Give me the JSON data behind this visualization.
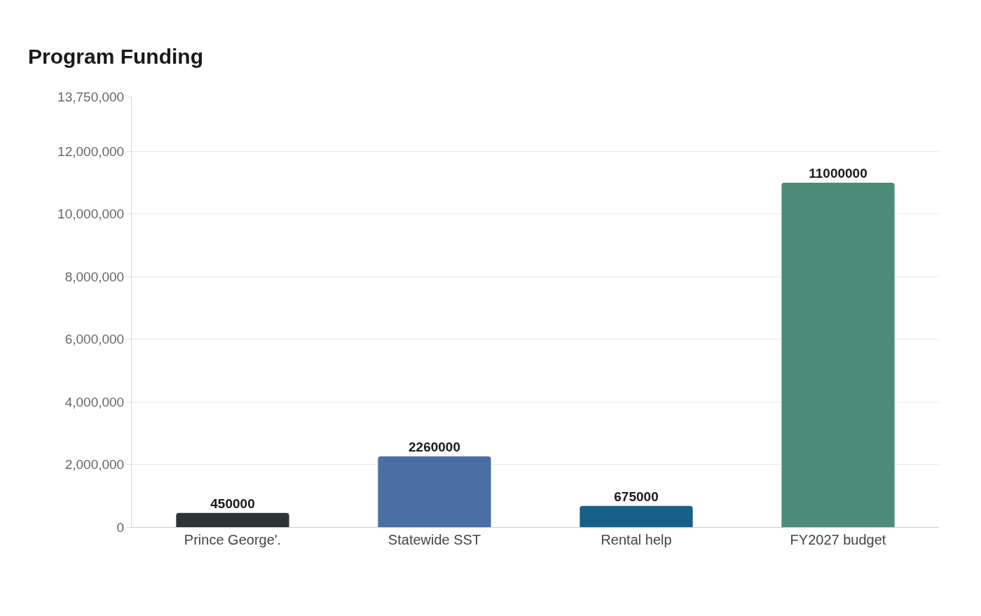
{
  "chart_data": {
    "type": "bar",
    "title": "Program Funding",
    "categories": [
      "Prince George'.",
      "Statewide SST",
      "Rental help",
      "FY2027 budget"
    ],
    "values": [
      450000,
      2260000,
      675000,
      11000000
    ],
    "colors": [
      "#2d3436",
      "#4a6fa5",
      "#17608a",
      "#4e8c7a"
    ],
    "ylim": [
      0,
      13750000
    ],
    "yticks": [
      {
        "value": 0,
        "label": "0"
      },
      {
        "value": 2000000,
        "label": "2,000,000"
      },
      {
        "value": 4000000,
        "label": "4,000,000"
      },
      {
        "value": 6000000,
        "label": "6,000,000"
      },
      {
        "value": 8000000,
        "label": "8,000,000"
      },
      {
        "value": 10000000,
        "label": "10,000,000"
      },
      {
        "value": 12000000,
        "label": "12,000,000"
      },
      {
        "value": 13750000,
        "label": "13,750,000"
      }
    ],
    "grid": "y",
    "data_labels": true
  }
}
